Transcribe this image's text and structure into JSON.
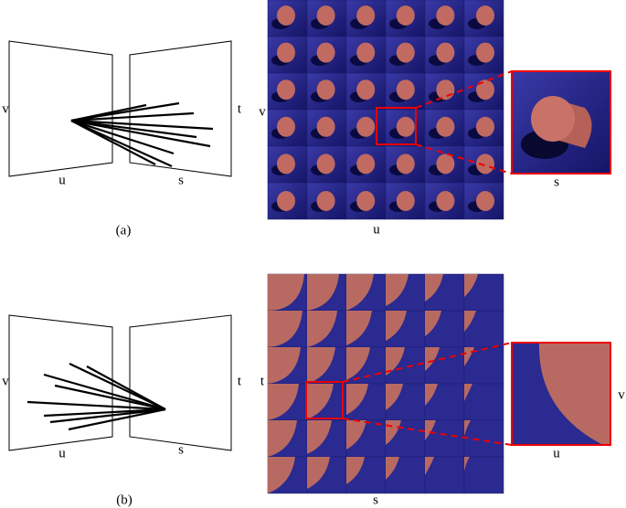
{
  "panels": [
    {
      "caption": "(a)",
      "diagram": {
        "left_vertical": "v",
        "left_horizontal": "u",
        "right_horizontal": "s",
        "right_vertical": "t"
      },
      "grid": {
        "vertical": "v",
        "horizontal": "u"
      },
      "zoom": {
        "horizontal": "s"
      }
    },
    {
      "caption": "(b)",
      "diagram": {
        "left_vertical": "v",
        "left_horizontal": "u",
        "right_horizontal": "s",
        "right_vertical": "t"
      },
      "grid": {
        "vertical": "t",
        "horizontal": "s"
      },
      "zoom": {
        "vertical": "v",
        "horizontal": "u"
      }
    }
  ]
}
